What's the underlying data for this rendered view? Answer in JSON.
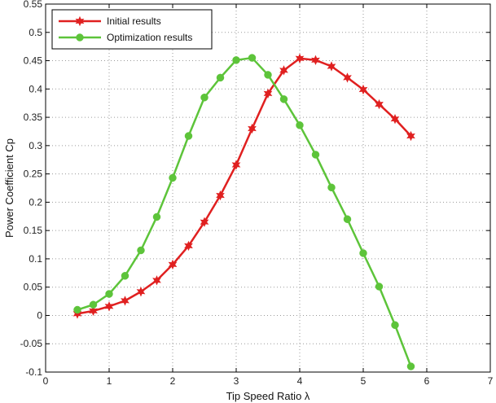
{
  "chart_data": {
    "type": "line",
    "title": "",
    "xlabel": "Tip Speed Ratio   λ",
    "ylabel": "Power Coefficient   Cp",
    "xlim": [
      0,
      7
    ],
    "ylim": [
      -0.1,
      0.55
    ],
    "grid": true,
    "legend_position": "top-left",
    "xticks": [
      "0",
      "1",
      "2",
      "3",
      "4",
      "5",
      "6",
      "7"
    ],
    "yticks": [
      "-0.1",
      "-0.05",
      "0",
      "0.05",
      "0.1",
      "0.15",
      "0.2",
      "0.25",
      "0.3",
      "0.35",
      "0.4",
      "0.45",
      "0.5",
      "0.55"
    ],
    "series": [
      {
        "name": "Initial results",
        "color": "#e02020",
        "marker": "star",
        "x": [
          0.5,
          0.75,
          1.0,
          1.25,
          1.5,
          1.75,
          2.0,
          2.25,
          2.5,
          2.75,
          3.0,
          3.25,
          3.5,
          3.75,
          4.0,
          4.25,
          4.5,
          4.75,
          5.0,
          5.25,
          5.5,
          5.75
        ],
        "y": [
          0.003,
          0.008,
          0.016,
          0.026,
          0.042,
          0.062,
          0.09,
          0.123,
          0.165,
          0.212,
          0.266,
          0.33,
          0.392,
          0.433,
          0.454,
          0.451,
          0.44,
          0.42,
          0.399,
          0.373,
          0.347,
          0.317
        ]
      },
      {
        "name": "Optimization results",
        "color": "#5dc43a",
        "marker": "circle",
        "x": [
          0.5,
          0.75,
          1.0,
          1.25,
          1.5,
          1.75,
          2.0,
          2.25,
          2.5,
          2.75,
          3.0,
          3.25,
          3.5,
          3.75,
          4.0,
          4.25,
          4.5,
          4.75,
          5.0,
          5.25,
          5.5,
          5.75
        ],
        "y": [
          0.01,
          0.019,
          0.038,
          0.07,
          0.115,
          0.174,
          0.243,
          0.317,
          0.385,
          0.42,
          0.451,
          0.455,
          0.425,
          0.382,
          0.336,
          0.284,
          0.226,
          0.17,
          0.11,
          0.051,
          -0.017,
          -0.09
        ]
      }
    ]
  }
}
